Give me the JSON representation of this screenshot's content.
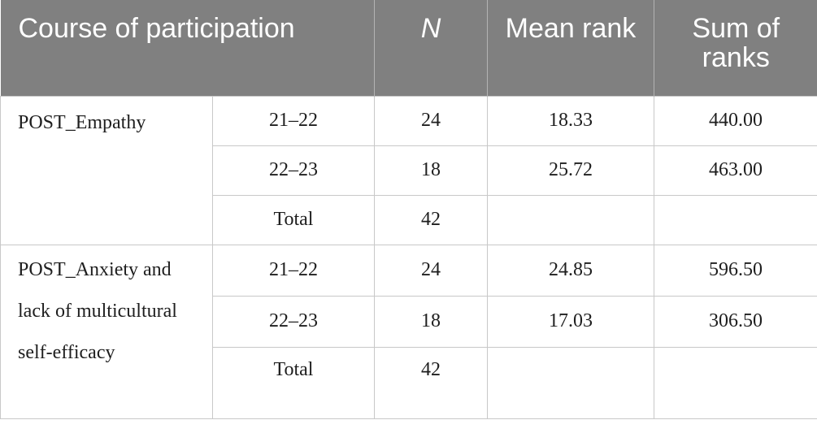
{
  "table": {
    "headers": {
      "course": "Course of participation",
      "n": "N",
      "mean_rank": "Mean rank",
      "sum_ranks": "Sum of ranks"
    },
    "groups": [
      {
        "label": "POST_Empathy",
        "rows": [
          {
            "course": "21–22",
            "n": "24",
            "mean_rank": "18.33",
            "sum_ranks": "440.00"
          },
          {
            "course": "22–23",
            "n": "18",
            "mean_rank": "25.72",
            "sum_ranks": "463.00"
          },
          {
            "course": "Total",
            "n": "42",
            "mean_rank": "",
            "sum_ranks": ""
          }
        ]
      },
      {
        "label": "POST_Anxiety and lack of multicultural self-efficacy",
        "rows": [
          {
            "course": "21–22",
            "n": "24",
            "mean_rank": "24.85",
            "sum_ranks": "596.50"
          },
          {
            "course": "22–23",
            "n": "18",
            "mean_rank": "17.03",
            "sum_ranks": "306.50"
          },
          {
            "course": "Total",
            "n": "42",
            "mean_rank": "",
            "sum_ranks": ""
          }
        ]
      }
    ]
  }
}
